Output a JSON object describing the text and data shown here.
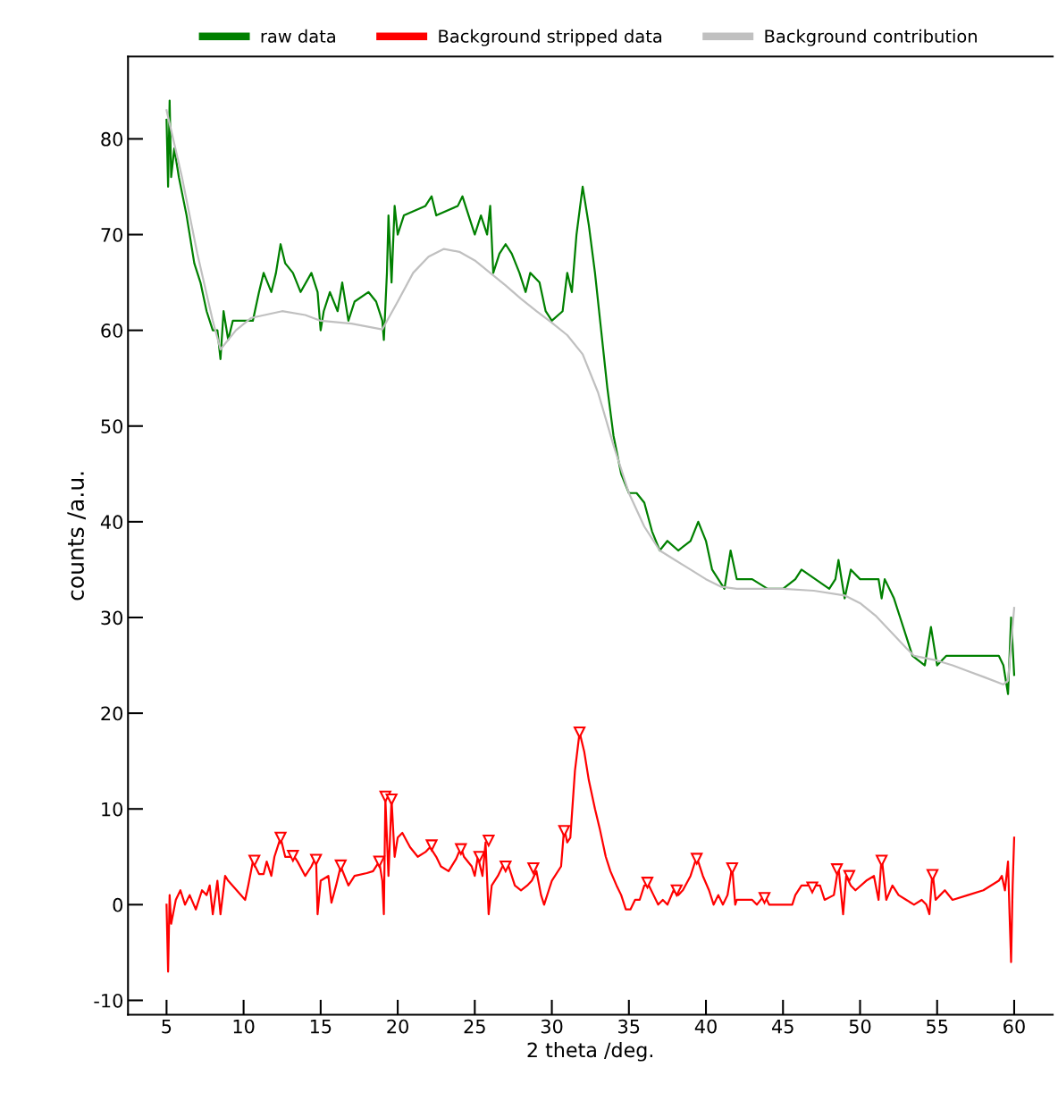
{
  "chart_data": {
    "type": "line",
    "xlabel": "2 theta /deg.",
    "ylabel": "counts /a.u.",
    "xlim": [
      2.5,
      62.5
    ],
    "xticks": [
      5,
      10,
      15,
      20,
      25,
      30,
      35,
      40,
      45,
      50,
      55,
      60
    ],
    "ylim": [
      -11.5,
      88.6
    ],
    "yticks": [
      -10,
      0,
      10,
      20,
      30,
      40,
      50,
      60,
      70,
      80
    ],
    "grid": false,
    "legend": "top",
    "marker": "none",
    "line_style": "solid",
    "series": [
      {
        "name": "raw data",
        "color": "#008000",
        "x": [
          5.0,
          5.1,
          5.2,
          5.3,
          5.5,
          5.8,
          6.3,
          6.8,
          7.2,
          7.6,
          8.0,
          8.3,
          8.5,
          8.7,
          9.0,
          9.3,
          10.6,
          11.0,
          11.3,
          11.8,
          12.1,
          12.4,
          12.7,
          13.2,
          13.7,
          14.4,
          14.8,
          15.0,
          15.2,
          15.6,
          16.1,
          16.4,
          16.8,
          17.2,
          18.1,
          18.6,
          19.0,
          19.1,
          19.3,
          19.4,
          19.6,
          19.8,
          20.0,
          20.4,
          21.8,
          22.2,
          22.5,
          23.9,
          24.2,
          24.6,
          25.0,
          25.4,
          25.8,
          26.0,
          26.2,
          26.6,
          27.0,
          27.4,
          27.9,
          28.3,
          28.6,
          29.2,
          29.6,
          30.0,
          30.7,
          31.0,
          31.3,
          31.6,
          32.0,
          32.4,
          32.8,
          33.2,
          33.6,
          34.0,
          34.5,
          35.0,
          35.5,
          36.0,
          36.5,
          37.0,
          37.5,
          38.2,
          39.0,
          39.5,
          40.0,
          40.4,
          40.8,
          41.2,
          41.6,
          42.0,
          43.0,
          44.0,
          45.0,
          45.8,
          46.2,
          48.0,
          48.4,
          48.6,
          49.0,
          49.4,
          50.0,
          51.2,
          51.4,
          51.6,
          52.2,
          52.6,
          53.0,
          53.4,
          54.2,
          54.6,
          55.0,
          55.6,
          59.0,
          59.3,
          59.6,
          59.8,
          60.0
        ],
        "values": [
          82,
          75,
          84,
          76,
          79,
          76,
          72,
          67,
          65,
          62,
          60,
          60,
          57,
          62,
          59,
          61,
          61,
          64,
          66,
          64,
          66,
          69,
          67,
          66,
          64,
          66,
          64,
          60,
          62,
          64,
          62,
          65,
          61,
          63,
          64,
          63,
          61,
          59,
          66,
          72,
          65,
          73,
          70,
          72,
          73,
          74,
          72,
          73,
          74,
          72,
          70,
          72,
          70,
          73,
          66,
          68,
          69,
          68,
          66,
          64,
          66,
          65,
          62,
          61,
          62,
          66,
          64,
          70,
          75,
          71,
          66,
          60,
          54,
          49,
          45,
          43,
          43,
          42,
          39,
          37,
          38,
          37,
          38,
          40,
          38,
          35,
          34,
          33,
          37,
          34,
          34,
          33,
          33,
          34,
          35,
          33,
          34,
          36,
          32,
          35,
          34,
          34,
          32,
          34,
          32,
          30,
          28,
          26,
          25,
          29,
          25,
          26,
          26,
          25,
          22,
          30,
          24
        ]
      },
      {
        "name": "Background stripped data",
        "color": "#ff0000",
        "x": [
          5.0,
          5.1,
          5.2,
          5.3,
          5.6,
          5.9,
          6.2,
          6.5,
          6.9,
          7.3,
          7.6,
          7.8,
          8.0,
          8.3,
          8.5,
          8.8,
          9.0,
          10.1,
          10.3,
          10.6,
          11.0,
          11.3,
          11.5,
          11.8,
          12.0,
          12.4,
          12.7,
          13.0,
          13.3,
          13.5,
          14.0,
          14.4,
          14.7,
          14.8,
          15.0,
          15.5,
          15.7,
          16.0,
          16.3,
          16.8,
          17.2,
          18.0,
          18.4,
          18.8,
          19.0,
          19.1,
          19.2,
          19.4,
          19.6,
          19.8,
          20.0,
          20.3,
          20.8,
          21.3,
          21.8,
          22.1,
          22.5,
          22.8,
          23.3,
          23.8,
          24.1,
          24.3,
          24.8,
          25.0,
          25.2,
          25.5,
          25.7,
          25.9,
          26.1,
          26.5,
          26.8,
          27.2,
          27.6,
          28.0,
          28.4,
          28.7,
          29.0,
          29.3,
          29.5,
          29.8,
          30.0,
          30.6,
          30.8,
          31.0,
          31.2,
          31.5,
          31.8,
          32.1,
          32.4,
          32.8,
          33.1,
          33.5,
          33.8,
          34.2,
          34.5,
          34.8,
          35.1,
          35.4,
          35.7,
          36.0,
          36.3,
          36.6,
          36.9,
          37.2,
          37.5,
          37.9,
          38.2,
          38.5,
          39.0,
          39.4,
          39.8,
          40.2,
          40.5,
          40.8,
          41.1,
          41.4,
          41.7,
          41.9,
          42.0,
          43.0,
          43.3,
          43.8,
          44.1,
          45.6,
          45.8,
          46.2,
          47.4,
          47.7,
          48.3,
          48.6,
          48.9,
          49.1,
          49.4,
          49.7,
          50.4,
          50.9,
          51.2,
          51.4,
          51.7,
          52.1,
          52.5,
          53.0,
          53.5,
          54.0,
          54.3,
          54.5,
          54.7,
          54.9,
          55.2,
          55.5,
          56.0,
          57.0,
          58.0,
          59.0,
          59.2,
          59.4,
          59.6,
          59.7,
          59.8,
          59.9,
          60.0
        ],
        "values": [
          0,
          -7,
          1,
          -2,
          0.5,
          1.5,
          0,
          1,
          -0.5,
          1.5,
          1,
          2,
          -1,
          2.5,
          -1,
          3,
          2.5,
          0.5,
          2,
          4.5,
          3.2,
          3.2,
          4.5,
          3,
          5,
          7,
          5,
          5,
          5,
          4.5,
          3,
          4,
          5,
          -1,
          2.5,
          3,
          0.2,
          2,
          4,
          2,
          3,
          3.3,
          3.5,
          4.5,
          2.5,
          -1,
          11,
          3,
          11,
          5,
          7,
          7.5,
          6,
          5,
          5.5,
          6,
          5,
          4,
          3.5,
          4.8,
          6,
          5,
          4,
          3,
          5,
          3,
          6.5,
          -1,
          2,
          3,
          4,
          4,
          2,
          1.5,
          2,
          2.5,
          3.5,
          1,
          0,
          1.5,
          2.5,
          4,
          8,
          6.5,
          7,
          14,
          18,
          16,
          13,
          10,
          8,
          5,
          3.5,
          2,
          1,
          -0.5,
          -0.5,
          0.5,
          0.5,
          2,
          2,
          1,
          0,
          0.5,
          0,
          1.5,
          1,
          1.5,
          3,
          5,
          3,
          1.5,
          0,
          1,
          0,
          1,
          4,
          0,
          0.5,
          0.5,
          0,
          1,
          0,
          0,
          1,
          2,
          2,
          0.5,
          1,
          4,
          -1,
          3,
          2,
          1.5,
          2.5,
          3,
          0.5,
          5,
          0.5,
          2,
          1,
          0.5,
          0,
          0.5,
          0,
          -1,
          3.5,
          0.5,
          1,
          1.5,
          0.5,
          1,
          1.5,
          2.5,
          3,
          1.5,
          4.5,
          -1,
          -6,
          2,
          7
        ]
      },
      {
        "type": "scatter",
        "marker": "triangle",
        "color": "#ff0000",
        "x": [
          10.7,
          12.4,
          13.2,
          14.7,
          16.3,
          18.8,
          19.2,
          19.6,
          22.2,
          24.1,
          25.3,
          25.9,
          27.0,
          28.8,
          30.8,
          31.8,
          36.2,
          38.1,
          39.4,
          41.7,
          43.8,
          46.9,
          48.5,
          49.3,
          51.4,
          54.7
        ],
        "values": [
          4.6,
          7.0,
          5.1,
          4.7,
          4.1,
          4.5,
          11.3,
          11.0,
          6.2,
          5.8,
          5.0,
          6.7,
          4.0,
          3.8,
          7.7,
          18.0,
          2.3,
          1.5,
          4.8,
          3.8,
          0.7,
          1.8,
          3.7,
          3.0,
          4.6,
          3.1
        ]
      },
      {
        "name": "Background contribution",
        "color": "#c0c0c0",
        "x": [
          5.0,
          6.0,
          7.0,
          8.0,
          8.5,
          9.5,
          10.5,
          12.5,
          14.0,
          15.0,
          17.0,
          19.0,
          20.0,
          21.0,
          22.0,
          23.0,
          24.0,
          25.0,
          26.0,
          27.0,
          28.0,
          29.0,
          30.0,
          31.0,
          32.0,
          33.0,
          34.0,
          35.0,
          36.0,
          37.0,
          38.0,
          39.0,
          40.0,
          41.0,
          42.0,
          45.0,
          47.0,
          49.0,
          50.0,
          51.0,
          52.0,
          53.0,
          53.5,
          55.0,
          56.0,
          57.0,
          58.0,
          59.3,
          59.6,
          60.0
        ],
        "values": [
          83,
          76,
          68,
          61,
          58,
          60,
          61.3,
          62,
          61.6,
          61,
          60.7,
          60.1,
          63,
          66,
          67.7,
          68.5,
          68.2,
          67.3,
          66,
          64.7,
          63.3,
          62,
          60.8,
          59.5,
          57.5,
          53.5,
          48,
          43,
          39.5,
          37,
          36,
          35,
          34,
          33.2,
          33,
          33,
          32.8,
          32.3,
          31.5,
          30.2,
          28.5,
          26.8,
          26,
          25.5,
          25,
          24.4,
          23.8,
          23,
          23.4,
          31
        ]
      }
    ]
  }
}
